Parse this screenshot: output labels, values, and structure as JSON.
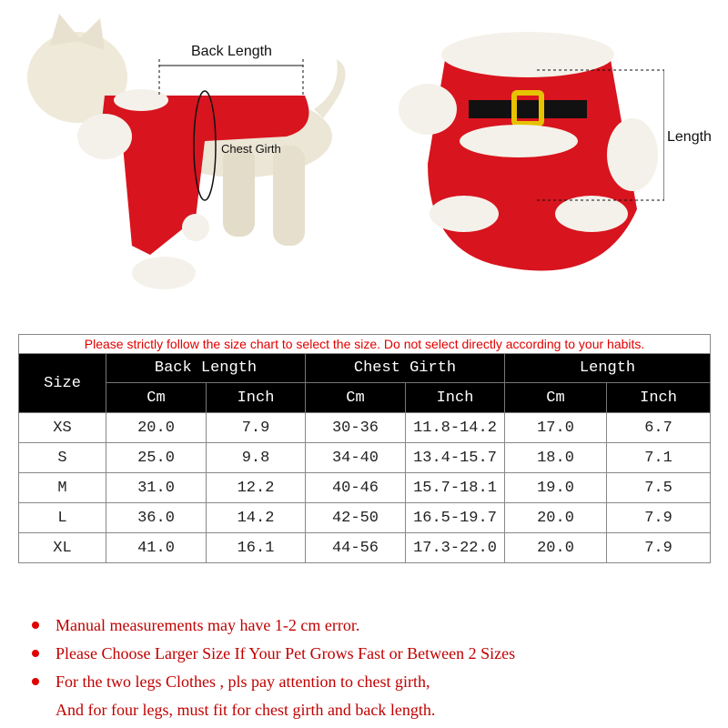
{
  "photos": {
    "left": {
      "back_length_label": "Back Length",
      "chest_girth_label": "Chest Girth"
    },
    "right": {
      "length_label": "Length"
    }
  },
  "colors": {
    "costume_red": "#d8141e",
    "fur_white": "#f4f1ea",
    "note_red": "#c00000",
    "caption_red": "#e00000",
    "header_bg": "#000000"
  },
  "size_chart": {
    "caption": "Please strictly follow the size chart to select the size. Do not select directly according to your habits.",
    "size_header": "Size",
    "groups": [
      "Back Length",
      "Chest Girth",
      "Length"
    ],
    "units": [
      "Cm",
      "Inch",
      "Cm",
      "Inch",
      "Cm",
      "Inch"
    ],
    "rows": [
      [
        "XS",
        "20.0",
        "7.9",
        "30-36",
        "11.8-14.2",
        "17.0",
        "6.7"
      ],
      [
        "S",
        "25.0",
        "9.8",
        "34-40",
        "13.4-15.7",
        "18.0",
        "7.1"
      ],
      [
        "M",
        "31.0",
        "12.2",
        "40-46",
        "15.7-18.1",
        "19.0",
        "7.5"
      ],
      [
        "L",
        "36.0",
        "14.2",
        "42-50",
        "16.5-19.7",
        "20.0",
        "7.9"
      ],
      [
        "XL",
        "41.0",
        "16.1",
        "44-56",
        "17.3-22.0",
        "20.0",
        "7.9"
      ]
    ]
  },
  "notes": [
    "Manual measurements may have 1-2 cm error.",
    "Please Choose Larger Size If Your Pet Grows Fast or Between 2 Sizes",
    "For the two legs Clothes , pls pay attention to chest girth,",
    "And for four legs, must fit for chest girth and back length."
  ]
}
